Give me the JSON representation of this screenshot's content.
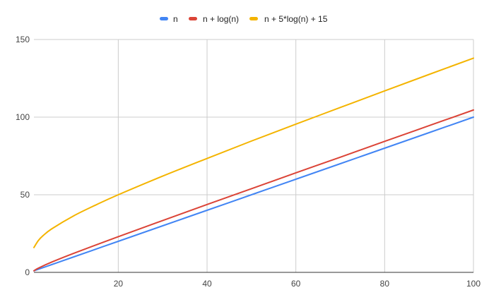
{
  "chart_data": {
    "type": "line",
    "title": "",
    "xlabel": "",
    "ylabel": "",
    "xlim": [
      1,
      100
    ],
    "ylim": [
      0,
      150
    ],
    "x_ticks": [
      20,
      40,
      60,
      80,
      100
    ],
    "y_ticks": [
      0,
      50,
      100,
      150
    ],
    "grid": true,
    "legend_position": "top",
    "series": [
      {
        "name": "n",
        "color": "#4285F4",
        "x": [
          1,
          5,
          10,
          20,
          30,
          40,
          50,
          60,
          70,
          80,
          90,
          100
        ],
        "y": [
          1,
          5,
          10,
          20,
          30,
          40,
          50,
          60,
          70,
          80,
          90,
          100
        ]
      },
      {
        "name": "n + log(n)",
        "color": "#DB4437",
        "x": [
          1,
          2,
          5,
          10,
          20,
          30,
          40,
          50,
          60,
          70,
          80,
          90,
          100
        ],
        "y": [
          1,
          2.7,
          6.6,
          12.3,
          23,
          33.4,
          43.7,
          53.9,
          64.1,
          74.2,
          84.4,
          94.5,
          104.6
        ]
      },
      {
        "name": "n + 5*log(n) + 15",
        "color": "#F4B400",
        "x": [
          1,
          2,
          3,
          5,
          10,
          15,
          20,
          30,
          40,
          50,
          60,
          70,
          80,
          90,
          100
        ],
        "y": [
          16,
          20.5,
          23.5,
          28,
          36.5,
          43.5,
          50,
          62,
          73.4,
          84.6,
          95.5,
          106.2,
          116.9,
          127.5,
          138
        ]
      }
    ]
  }
}
